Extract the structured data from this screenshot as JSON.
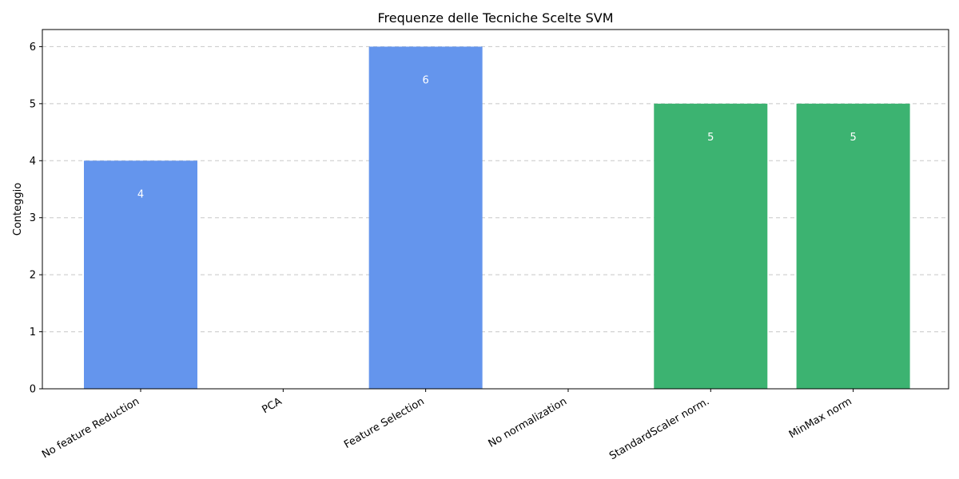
{
  "chart_data": {
    "type": "bar",
    "title": "Frequenze delle Tecniche Scelte SVM",
    "xlabel": "",
    "ylabel": "Conteggio",
    "categories": [
      "No feature Reduction",
      "PCA",
      "Feature Selection",
      "No normalization",
      "StandardScaler norm.",
      "MinMax norm"
    ],
    "values": [
      4,
      0,
      6,
      0,
      5,
      5
    ],
    "value_labels": [
      "4",
      "",
      "6",
      "",
      "5",
      "5"
    ],
    "bar_colors": [
      "#6495ed",
      "#6495ed",
      "#6495ed",
      "#3cb371",
      "#3cb371",
      "#3cb371"
    ],
    "ylim": [
      0,
      6.3
    ],
    "yticks": [
      0,
      1,
      2,
      3,
      4,
      5,
      6
    ],
    "grid": "y-dashed",
    "legend": "none"
  }
}
